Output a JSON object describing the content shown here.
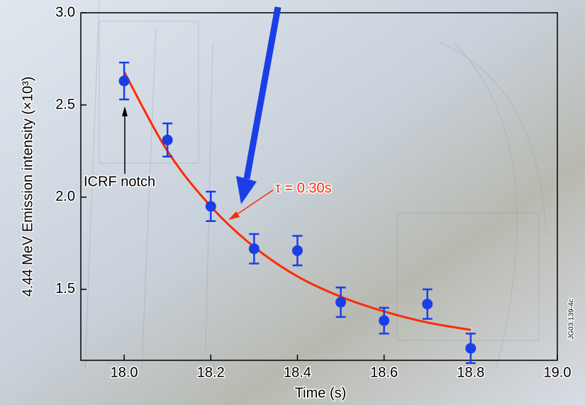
{
  "chart_data": {
    "type": "scatter",
    "x_label": "Time (s)",
    "y_label": "4.44 MeV Emission intensity (×10³)",
    "x": [
      18.0,
      18.1,
      18.2,
      18.3,
      18.4,
      18.5,
      18.6,
      18.7,
      18.8
    ],
    "series": [
      {
        "color": "#1a3fe6",
        "values": [
          2.63,
          2.31,
          1.95,
          1.72,
          1.71,
          1.43,
          1.33,
          1.42,
          1.18
        ],
        "errors": [
          0.1,
          0.09,
          0.08,
          0.08,
          0.08,
          0.08,
          0.07,
          0.08,
          0.08
        ]
      }
    ],
    "fit": {
      "color": "#ff2a00",
      "values": [
        2.68,
        2.25,
        1.95,
        1.73,
        1.57,
        1.46,
        1.38,
        1.32,
        1.28
      ]
    },
    "xlim": [
      17.9,
      19.0
    ],
    "ylim": [
      1.115,
      3.0
    ],
    "xticks": [
      {
        "value": 18,
        "label": "18.0"
      },
      18.2,
      18.4,
      18.6,
      18.8,
      {
        "value": 19,
        "label": "19.0"
      }
    ],
    "yticks": [
      1.5,
      {
        "value": 2,
        "label": "2.0"
      },
      2.5,
      {
        "value": 3,
        "label": "3.0"
      }
    ],
    "annotations": {
      "notch": "ICRF notch",
      "tau": "τ = 0.30s",
      "ref": "JG03.139-4c"
    }
  }
}
